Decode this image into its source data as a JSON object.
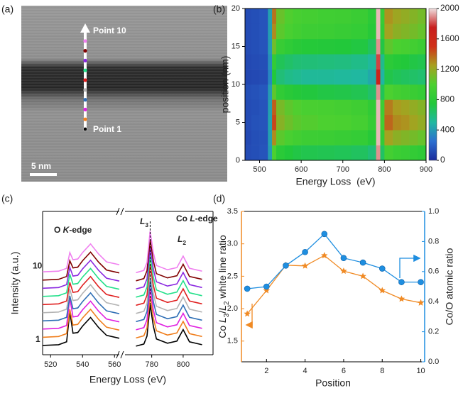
{
  "panel_a": {
    "label": "(a)",
    "annotations": [
      "Point 10",
      "Point 1"
    ],
    "scale_bar": "5 nm"
  },
  "chart_data": [
    {
      "type": "heatmap",
      "label": "(b)",
      "xlabel": "Energy Loss  (eV)",
      "ylabel": "position (nm)",
      "xlim": [
        465,
        900
      ],
      "xticks": [
        500,
        600,
        700,
        800,
        900
      ],
      "ylim": [
        0,
        20
      ],
      "yticks": [
        0,
        5,
        10,
        15,
        20
      ],
      "x_edges": [
        465,
        480,
        500,
        520,
        530,
        540,
        560,
        580,
        600,
        640,
        680,
        720,
        760,
        780,
        790,
        800,
        820,
        840,
        860,
        880,
        900
      ],
      "y_edges": [
        0,
        2,
        4,
        6,
        8,
        10,
        12,
        14,
        16,
        18,
        20
      ],
      "z": [
        [
          120,
          130,
          150,
          400,
          1000,
          800,
          750,
          720,
          700,
          690,
          680,
          660,
          600,
          1900,
          650,
          950,
          900,
          880,
          850,
          820
        ],
        [
          110,
          130,
          140,
          420,
          1300,
          1040,
          980,
          940,
          910,
          900,
          880,
          860,
          780,
          1950,
          850,
          1240,
          1170,
          1140,
          1110,
          1070
        ],
        [
          120,
          140,
          150,
          430,
          1450,
          1160,
          1090,
          1040,
          1020,
          1000,
          990,
          960,
          870,
          1950,
          940,
          1380,
          1300,
          1280,
          1230,
          1190
        ],
        [
          120,
          130,
          150,
          420,
          1400,
          1120,
          1050,
          1010,
          980,
          970,
          950,
          920,
          840,
          1950,
          910,
          1330,
          1260,
          1230,
          1190,
          1150
        ],
        [
          130,
          140,
          160,
          400,
          1050,
          840,
          790,
          760,
          740,
          720,
          710,
          690,
          630,
          1900,
          680,
          1000,
          950,
          920,
          890,
          860
        ],
        [
          100,
          110,
          120,
          330,
          750,
          600,
          560,
          540,
          520,
          520,
          510,
          500,
          450,
          1700,
          490,
          710,
          680,
          660,
          640,
          620
        ],
        [
          110,
          120,
          130,
          360,
          850,
          680,
          640,
          610,
          600,
          590,
          580,
          560,
          510,
          1800,
          550,
          810,
          770,
          750,
          720,
          700
        ],
        [
          120,
          130,
          150,
          400,
          1100,
          880,
          830,
          790,
          770,
          760,
          750,
          730,
          660,
          1900,
          720,
          1050,
          990,
          970,
          940,
          900
        ],
        [
          120,
          130,
          150,
          410,
          1300,
          1040,
          980,
          940,
          910,
          900,
          880,
          860,
          780,
          1950,
          850,
          1240,
          1170,
          1140,
          1110,
          1070
        ],
        [
          120,
          130,
          150,
          420,
          1350,
          1080,
          1010,
          970,
          950,
          930,
          920,
          890,
          810,
          1950,
          880,
          1280,
          1220,
          1190,
          1150,
          1110
        ]
      ],
      "zlim": [
        0,
        2000
      ],
      "zticks": [
        0,
        400,
        800,
        1200,
        1600,
        2000
      ],
      "colormap": [
        "#1c2c9c",
        "#2c6fd0",
        "#20b8a0",
        "#22c83a",
        "#4cd030",
        "#a8a020",
        "#d03018",
        "#c81e1e",
        "#f0dede"
      ]
    },
    {
      "type": "line",
      "label": "(c)",
      "xlabel": "Energy Loss (eV)",
      "ylabel": "Intensity (a.u.)",
      "xlim": [
        [
          515,
          563
        ],
        [
          763,
          819
        ]
      ],
      "xticks": [
        520,
        540,
        560,
        780,
        800
      ],
      "ylim": [
        0,
        10
      ],
      "annotations": [
        {
          "parts": [
            "O ",
            "K",
            "-edge"
          ]
        },
        {
          "parts": [
            "Co ",
            "L",
            "-edge"
          ]
        },
        {
          "parts": [
            "L",
            "3"
          ]
        },
        {
          "parts": [
            "L",
            "2"
          ]
        }
      ],
      "x": [
        515,
        525,
        530,
        532,
        534,
        537,
        540,
        545,
        550,
        555,
        563,
        770,
        775,
        777,
        779,
        781,
        783,
        790,
        796,
        800,
        804,
        812
      ],
      "series": [
        {
          "name": "1",
          "color": "#000000",
          "values": [
            0.65,
            0.7,
            0.9,
            3.0,
            1.5,
            1.55,
            2.0,
            2.6,
            1.9,
            1.35,
            1.15,
            0.6,
            0.75,
            1.3,
            3.5,
            2.0,
            1.1,
            0.8,
            0.95,
            1.75,
            0.9,
            0.7
          ]
        },
        {
          "color": "#f07f1e",
          "values": [
            1.22,
            1.27,
            1.47,
            3.17,
            2.07,
            2.12,
            2.57,
            3.17,
            2.47,
            1.92,
            1.72,
            1.17,
            1.32,
            1.87,
            4.07,
            2.57,
            1.67,
            1.37,
            1.52,
            2.32,
            1.47,
            1.27
          ]
        },
        {
          "color": "#e020e0",
          "values": [
            1.79,
            1.84,
            2.04,
            3.94,
            2.64,
            2.69,
            3.14,
            3.74,
            3.04,
            2.49,
            2.29,
            1.74,
            1.89,
            2.44,
            4.64,
            3.14,
            2.24,
            1.94,
            2.09,
            2.89,
            2.04,
            1.84
          ]
        },
        {
          "color": "#2f6fb5",
          "values": [
            2.36,
            2.41,
            2.61,
            4.11,
            3.21,
            3.26,
            3.71,
            4.31,
            3.61,
            3.06,
            2.86,
            2.31,
            2.46,
            3.01,
            5.21,
            3.71,
            2.81,
            2.51,
            2.66,
            3.46,
            2.61,
            2.41
          ]
        },
        {
          "color": "#b4b4b4",
          "values": [
            2.93,
            2.98,
            3.18,
            4.58,
            3.78,
            3.83,
            4.28,
            4.88,
            4.18,
            3.63,
            3.43,
            2.88,
            3.03,
            3.58,
            5.78,
            4.28,
            3.38,
            3.08,
            3.23,
            4.03,
            3.18,
            2.98
          ]
        },
        {
          "color": "#e02020",
          "values": [
            3.5,
            3.55,
            3.75,
            5.05,
            4.35,
            4.4,
            4.85,
            5.45,
            4.75,
            4.2,
            4.0,
            3.45,
            3.6,
            4.15,
            6.35,
            4.85,
            3.95,
            3.65,
            3.8,
            4.6,
            3.75,
            3.55
          ]
        },
        {
          "color": "#22e08a",
          "values": [
            4.07,
            4.12,
            4.32,
            5.62,
            4.92,
            4.97,
            5.42,
            6.02,
            5.32,
            4.77,
            4.57,
            4.02,
            4.17,
            4.72,
            6.92,
            5.42,
            4.52,
            4.22,
            4.37,
            5.17,
            4.32,
            4.12
          ]
        },
        {
          "color": "#8a28e0",
          "values": [
            4.64,
            4.69,
            4.89,
            6.09,
            5.49,
            5.54,
            5.99,
            6.59,
            5.89,
            5.34,
            5.14,
            4.59,
            4.74,
            5.29,
            7.49,
            5.99,
            5.09,
            4.79,
            4.94,
            5.74,
            4.89,
            4.69
          ]
        },
        {
          "color": "#800000",
          "values": [
            5.21,
            5.26,
            5.46,
            6.56,
            6.06,
            6.11,
            6.56,
            7.16,
            6.46,
            5.91,
            5.71,
            5.16,
            5.31,
            5.86,
            8.06,
            6.56,
            5.66,
            5.36,
            5.51,
            6.31,
            5.46,
            5.26
          ]
        },
        {
          "name": "10",
          "color": "#f080f0",
          "values": [
            5.78,
            5.83,
            6.03,
            7.13,
            6.63,
            6.68,
            7.13,
            7.73,
            7.03,
            6.48,
            6.28,
            5.73,
            5.88,
            6.43,
            8.63,
            7.13,
            6.23,
            5.93,
            6.08,
            6.88,
            6.03,
            5.83
          ]
        }
      ]
    },
    {
      "type": "line",
      "label": "(d)",
      "xlabel": "Position",
      "ylabel_parts": [
        "Co ",
        "L",
        "3",
        "/",
        "L",
        "2",
        " white line ratio"
      ],
      "y2label": "Co/O atomic ratio",
      "xlim": [
        0.7,
        10.2
      ],
      "xticks": [
        2,
        4,
        6,
        8,
        10
      ],
      "ylim": [
        1.18,
        3.5
      ],
      "yticks": [
        1.5,
        {
          "value": 2,
          "label": "2.0"
        },
        2.5,
        {
          "value": 3,
          "label": "3.0"
        },
        3.5
      ],
      "y2lim": [
        0,
        1
      ],
      "y2ticks": [
        {
          "value": 0,
          "label": "0.0"
        },
        0.2,
        0.4,
        0.6,
        0.8,
        {
          "value": 1,
          "label": "1.0"
        }
      ],
      "x": [
        1,
        2,
        3,
        4,
        5,
        6,
        7,
        8,
        9,
        10
      ],
      "series": [
        {
          "color": "#f08a24",
          "marker": "star",
          "values": [
            1.92,
            2.28,
            2.67,
            2.66,
            2.82,
            2.58,
            2.5,
            2.28,
            2.15,
            2.09
          ]
        },
        {
          "color": "#1e8ee0",
          "marker": "circle",
          "axis": "y2",
          "values": [
            0.486,
            0.5,
            0.64,
            0.73,
            0.85,
            0.69,
            0.66,
            0.62,
            0.53,
            0.53
          ]
        }
      ]
    }
  ]
}
